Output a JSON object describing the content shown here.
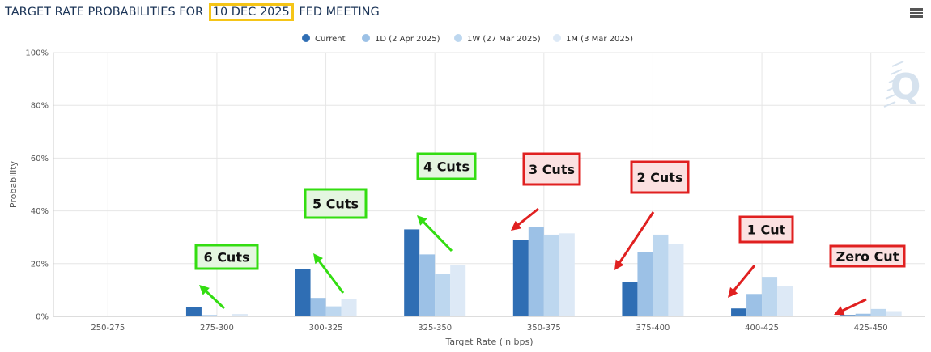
{
  "title": {
    "prefix": "TARGET RATE PROBABILITIES FOR ",
    "highlight": "10 DEC 2025",
    "suffix": " FED MEETING"
  },
  "menu_icon": "hamburger-menu-icon",
  "watermark_icon": "q-logo-icon",
  "colors": {
    "series": [
      "#2f6eb4",
      "#9cc1e6",
      "#bdd7ef",
      "#dde9f6"
    ],
    "grid": "#e6e6e6",
    "axis_text": "#555555",
    "green_label_fill": "#e4f6e0",
    "green_border": "#33dd11",
    "red_label_fill": "#fbe1e1",
    "red_border": "#e02020",
    "title_highlight": "#f5c518"
  },
  "chart_data": {
    "type": "bar",
    "categories": [
      "250-275",
      "275-300",
      "300-325",
      "325-350",
      "350-375",
      "375-400",
      "400-425",
      "425-450"
    ],
    "series": [
      {
        "name": "Current",
        "values": [
          0,
          3.5,
          18,
          33,
          29,
          13,
          3,
          0.5
        ]
      },
      {
        "name": "1D (2 Apr 2025)",
        "values": [
          0,
          0.5,
          7,
          23.5,
          34,
          24.5,
          8.5,
          1
        ]
      },
      {
        "name": "1W (27 Mar 2025)",
        "values": [
          0,
          0.2,
          3.8,
          16,
          31,
          31,
          15,
          2.8
        ]
      },
      {
        "name": "1M (3 Mar 2025)",
        "values": [
          0,
          0.9,
          6.5,
          19.5,
          31.5,
          27.5,
          11.5,
          2
        ]
      }
    ],
    "xlabel": "Target Rate (in bps)",
    "ylabel": "Probability",
    "ylim": [
      0,
      100
    ],
    "yticks": [
      "0%",
      "20%",
      "40%",
      "60%",
      "80%",
      "100%"
    ],
    "grid": true,
    "legend_position": "top-center",
    "annotations": [
      {
        "text": "6 Cuts",
        "style": "green",
        "category": "275-300"
      },
      {
        "text": "5 Cuts",
        "style": "green",
        "category": "300-325"
      },
      {
        "text": "4 Cuts",
        "style": "green",
        "category": "325-350"
      },
      {
        "text": "3 Cuts",
        "style": "red",
        "category": "350-375"
      },
      {
        "text": "2 Cuts",
        "style": "red",
        "category": "375-400"
      },
      {
        "text": "1 Cut",
        "style": "red",
        "category": "400-425"
      },
      {
        "text": "Zero Cut",
        "style": "red",
        "category": "425-450"
      }
    ]
  }
}
